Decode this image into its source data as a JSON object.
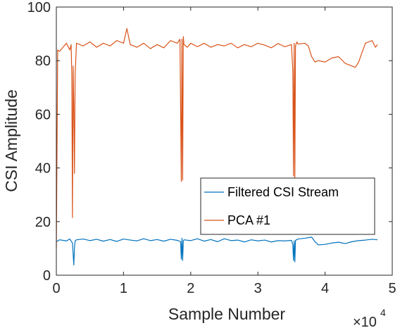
{
  "chart_data": {
    "type": "line",
    "xlabel": "Sample Number",
    "ylabel": "CSI Amplitude",
    "xlim": [
      0,
      5
    ],
    "ylim": [
      0,
      100
    ],
    "x_ticks": [
      "0",
      "1",
      "2",
      "3",
      "4",
      "5"
    ],
    "y_ticks": [
      "0",
      "20",
      "40",
      "60",
      "80",
      "100"
    ],
    "x_multiplier": "×10",
    "x_multiplier_exp": "4",
    "legend_position": "inside-bottom-right",
    "series": [
      {
        "name": "Filtered CSI Stream",
        "color": "#0072BD",
        "x": [
          0.0,
          0.05,
          0.1,
          0.15,
          0.2,
          0.24,
          0.25,
          0.26,
          0.27,
          0.28,
          0.3,
          0.4,
          0.5,
          0.6,
          0.7,
          0.8,
          0.9,
          1.0,
          1.1,
          1.2,
          1.3,
          1.4,
          1.5,
          1.6,
          1.7,
          1.8,
          1.85,
          1.86,
          1.87,
          1.88,
          1.89,
          1.9,
          2.0,
          2.1,
          2.2,
          2.3,
          2.4,
          2.5,
          2.6,
          2.7,
          2.8,
          2.9,
          3.0,
          3.1,
          3.2,
          3.3,
          3.4,
          3.5,
          3.52,
          3.53,
          3.54,
          3.55,
          3.56,
          3.6,
          3.7,
          3.8,
          3.85,
          3.9,
          4.0,
          4.1,
          4.2,
          4.3,
          4.4,
          4.5,
          4.6,
          4.7,
          4.78
        ],
        "y": [
          12.5,
          13.2,
          13.0,
          12.8,
          13.5,
          12.0,
          8.0,
          3.8,
          10.5,
          12.8,
          13.2,
          13.5,
          12.9,
          13.4,
          12.7,
          13.3,
          12.6,
          13.5,
          13.1,
          12.8,
          13.6,
          12.9,
          13.3,
          12.7,
          13.4,
          13.0,
          12.5,
          6.0,
          13.8,
          5.5,
          12.8,
          13.2,
          12.9,
          13.6,
          12.7,
          13.3,
          12.5,
          13.6,
          12.9,
          13.1,
          12.4,
          13.2,
          12.8,
          13.1,
          12.4,
          12.9,
          12.8,
          13.0,
          11.5,
          5.5,
          12.8,
          5.0,
          13.0,
          13.5,
          13.8,
          14.2,
          12.5,
          11.3,
          11.5,
          12.0,
          12.3,
          11.8,
          12.5,
          12.9,
          13.1,
          13.4,
          13.2
        ]
      },
      {
        "name": "PCA #1",
        "color": "#D95319",
        "x": [
          0.0,
          0.02,
          0.05,
          0.1,
          0.15,
          0.2,
          0.22,
          0.23,
          0.24,
          0.25,
          0.26,
          0.27,
          0.28,
          0.3,
          0.4,
          0.5,
          0.6,
          0.7,
          0.8,
          0.9,
          1.0,
          1.05,
          1.1,
          1.2,
          1.3,
          1.4,
          1.5,
          1.6,
          1.7,
          1.8,
          1.84,
          1.85,
          1.86,
          1.87,
          1.88,
          1.89,
          1.9,
          1.95,
          2.0,
          2.1,
          2.2,
          2.3,
          2.4,
          2.5,
          2.6,
          2.7,
          2.8,
          2.9,
          3.0,
          3.1,
          3.2,
          3.3,
          3.4,
          3.5,
          3.52,
          3.53,
          3.54,
          3.55,
          3.56,
          3.58,
          3.6,
          3.7,
          3.75,
          3.8,
          3.85,
          3.9,
          4.0,
          4.1,
          4.2,
          4.3,
          4.4,
          4.45,
          4.5,
          4.6,
          4.7,
          4.75,
          4.78
        ],
        "y": [
          10.0,
          84.0,
          83.5,
          85.0,
          86.5,
          84.0,
          86.0,
          75.0,
          21.5,
          78.0,
          62.0,
          38.0,
          75.0,
          86.5,
          85.5,
          87.0,
          85.0,
          86.5,
          85.5,
          87.5,
          86.5,
          92.0,
          86.0,
          85.0,
          86.5,
          84.5,
          86.0,
          84.8,
          87.5,
          86.5,
          88.0,
          62.0,
          35.0,
          88.0,
          35.5,
          89.0,
          86.0,
          85.0,
          86.5,
          85.2,
          86.5,
          85.0,
          86.0,
          85.5,
          86.5,
          84.8,
          86.0,
          85.2,
          86.5,
          85.8,
          84.8,
          86.4,
          85.2,
          86.0,
          76.0,
          37.0,
          86.5,
          36.5,
          85.5,
          87.0,
          86.2,
          86.5,
          85.5,
          81.5,
          79.5,
          80.0,
          79.5,
          81.0,
          81.5,
          79.0,
          78.0,
          77.5,
          79.5,
          86.5,
          87.5,
          85.0,
          86.0
        ]
      }
    ]
  }
}
